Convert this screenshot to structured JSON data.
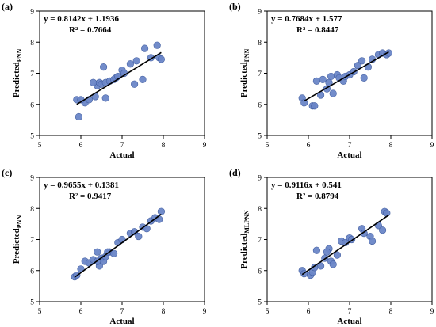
{
  "chart_data": [
    {
      "type": "scatter",
      "panel_label": "(a)",
      "xlabel": "Actual",
      "ylabel_main": "Predicted",
      "ylabel_sub": "PNN",
      "equation": "y = 0.8142x + 1.1936",
      "r2": "R² = 0.7664",
      "xlim": [
        5,
        9
      ],
      "ylim": [
        5,
        9
      ],
      "xticks": [
        "5",
        "6",
        "7",
        "8",
        "9"
      ],
      "yticks": [
        "5",
        "6",
        "7",
        "8",
        "9"
      ],
      "slope": 0.8142,
      "intercept": 1.1936,
      "fit_range": [
        5.9,
        7.95
      ],
      "marker_color": "#6b86c8",
      "x": [
        5.9,
        5.95,
        6.1,
        6.2,
        6.35,
        6.4,
        6.45,
        6.5,
        6.55,
        6.6,
        6.6,
        6.7,
        6.8,
        6.85,
        6.9,
        7.0,
        7.05,
        7.2,
        7.3,
        7.35,
        7.5,
        7.55,
        7.7,
        7.85,
        7.9,
        7.95,
        6.0,
        6.3
      ],
      "y": [
        6.15,
        5.6,
        6.05,
        6.15,
        6.25,
        6.6,
        6.7,
        6.65,
        7.2,
        6.2,
        6.7,
        6.75,
        6.8,
        6.85,
        6.9,
        7.1,
        7.0,
        7.3,
        6.65,
        7.4,
        6.8,
        7.8,
        7.5,
        7.9,
        7.5,
        7.45,
        6.15,
        6.7
      ]
    },
    {
      "type": "scatter",
      "panel_label": "(b)",
      "xlabel": "Actual",
      "ylabel_main": "Predicted",
      "ylabel_sub": "PNN",
      "equation": "y = 0.7684x + 1.577",
      "r2": "R² = 0.8447",
      "xlim": [
        5,
        9
      ],
      "ylim": [
        5,
        9
      ],
      "xticks": [
        "5",
        "6",
        "7",
        "8",
        "9"
      ],
      "yticks": [
        "5",
        "6",
        "7",
        "8",
        "9"
      ],
      "slope": 0.7684,
      "intercept": 1.577,
      "fit_range": [
        5.9,
        7.95
      ],
      "marker_color": "#6b86c8",
      "x": [
        5.85,
        5.9,
        6.1,
        6.2,
        6.3,
        6.35,
        6.45,
        6.5,
        6.55,
        6.6,
        6.7,
        6.75,
        6.85,
        6.9,
        7.0,
        7.1,
        7.2,
        7.3,
        7.35,
        7.45,
        7.55,
        7.7,
        7.8,
        7.9,
        7.95,
        6.15
      ],
      "y": [
        6.2,
        6.05,
        5.95,
        6.75,
        6.3,
        6.8,
        6.5,
        6.7,
        6.9,
        6.35,
        6.95,
        6.85,
        6.75,
        6.9,
        6.95,
        7.05,
        7.25,
        7.4,
        6.85,
        7.2,
        7.45,
        7.6,
        7.65,
        7.6,
        7.65,
        5.95
      ]
    },
    {
      "type": "scatter",
      "panel_label": "(c)",
      "xlabel": "Actual",
      "ylabel_main": "Predicted",
      "ylabel_sub": "PNN",
      "equation": "y = 0.9655x + 0.1381",
      "r2": "R² = 0.9417",
      "xlim": [
        5,
        9
      ],
      "ylim": [
        5,
        9
      ],
      "xticks": [
        "5",
        "6",
        "7",
        "8",
        "9"
      ],
      "yticks": [
        "5",
        "6",
        "7",
        "8",
        "9"
      ],
      "slope": 0.9655,
      "intercept": 0.1381,
      "fit_range": [
        5.85,
        7.95
      ],
      "marker_color": "#6b86c8",
      "x": [
        5.85,
        5.9,
        6.0,
        6.1,
        6.2,
        6.3,
        6.4,
        6.45,
        6.5,
        6.55,
        6.6,
        6.7,
        6.8,
        6.9,
        7.0,
        7.2,
        7.3,
        7.4,
        7.5,
        7.6,
        7.7,
        7.8,
        7.9,
        7.95,
        6.4,
        6.65
      ],
      "y": [
        5.8,
        5.85,
        6.05,
        6.3,
        6.25,
        6.35,
        6.6,
        6.15,
        6.4,
        6.3,
        6.45,
        6.6,
        6.55,
        6.9,
        7.0,
        7.2,
        7.25,
        7.1,
        7.4,
        7.35,
        7.6,
        7.7,
        7.65,
        7.9,
        6.3,
        6.6
      ]
    },
    {
      "type": "scatter",
      "panel_label": "(d)",
      "xlabel": "Actual",
      "ylabel_main": "Predicted",
      "ylabel_sub": "MLPNN",
      "equation": "y = 0.9116x + 0.541",
      "r2": "R² = 0.8794",
      "xlim": [
        5,
        9
      ],
      "ylim": [
        5,
        9
      ],
      "xticks": [
        "5",
        "6",
        "7",
        "8",
        "9"
      ],
      "yticks": [
        "5",
        "6",
        "7",
        "8",
        "9"
      ],
      "slope": 0.9116,
      "intercept": 0.541,
      "fit_range": [
        5.85,
        7.95
      ],
      "marker_color": "#6b86c8",
      "x": [
        5.85,
        5.9,
        6.05,
        6.1,
        6.2,
        6.3,
        6.4,
        6.5,
        6.55,
        6.6,
        6.7,
        6.8,
        6.9,
        7.0,
        7.05,
        7.3,
        7.35,
        7.5,
        7.55,
        7.7,
        7.8,
        7.85,
        7.9,
        6.45,
        6.15
      ],
      "y": [
        6.0,
        5.9,
        5.85,
        5.95,
        6.65,
        6.15,
        6.4,
        6.7,
        6.3,
        6.2,
        6.5,
        6.95,
        6.9,
        7.05,
        7.0,
        7.35,
        7.2,
        7.1,
        6.95,
        7.45,
        7.3,
        7.9,
        7.85,
        6.6,
        6.1
      ]
    }
  ]
}
